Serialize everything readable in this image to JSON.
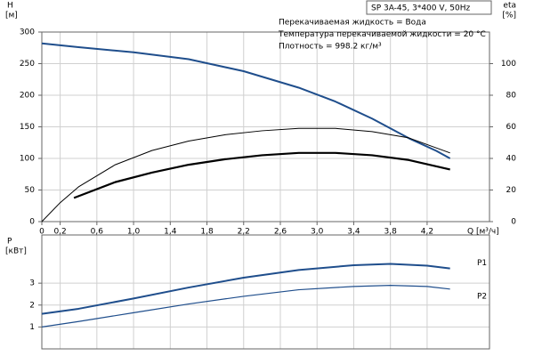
{
  "chart_data": [
    {
      "type": "line",
      "title": "SP 3A-45, 3*400 V, 50Hz",
      "annotations": [
        "Перекачиваемая жидкость = Вода",
        "Температура перекачиваемой жидкости = 20 °C",
        "Плотность = 998.2 кг/м³"
      ],
      "ylabel": "H",
      "yunit": "[м]",
      "y2label": "eta",
      "y2unit": "[%]",
      "xlabel": "Q [м³/ч]",
      "xlim": [
        0,
        4.88
      ],
      "ylim": [
        0,
        300
      ],
      "y2lim": [
        0,
        120
      ],
      "xticks": [
        0,
        {
          "value": 0.2,
          "label": "0,2"
        },
        {
          "value": 0.6,
          "label": "0,6"
        },
        {
          "value": 1.0,
          "label": "1,0"
        },
        {
          "value": 1.4,
          "label": "1,4"
        },
        {
          "value": 1.8,
          "label": "1,8"
        },
        {
          "value": 2.2,
          "label": "2,2"
        },
        {
          "value": 2.6,
          "label": "2,6"
        },
        {
          "value": 3.0,
          "label": "3,0"
        },
        {
          "value": 3.4,
          "label": "3,4"
        },
        {
          "value": 3.8,
          "label": "3,8"
        },
        {
          "value": 4.2,
          "label": "4,2"
        }
      ],
      "yticks": [
        0,
        50,
        100,
        150,
        200,
        250,
        300
      ],
      "y2ticks": [
        0,
        20,
        40,
        60,
        80,
        100
      ],
      "grid": true,
      "series": [
        {
          "color": "#1f4e8c",
          "width": 2,
          "x": [
            0,
            0.4,
            1.0,
            1.6,
            2.2,
            2.8,
            3.2,
            3.6,
            4.0,
            4.3,
            4.45
          ],
          "values": [
            282,
            276,
            268,
            257,
            238,
            212,
            190,
            163,
            132,
            112,
            100
          ]
        },
        {
          "color": "#000000",
          "width": 1,
          "axis": "y2",
          "x": [
            0,
            0.2,
            0.4,
            0.8,
            1.2,
            1.6,
            2.0,
            2.4,
            2.8,
            3.2,
            3.6,
            4.0,
            4.45
          ],
          "values": [
            0,
            12,
            22,
            36,
            45,
            51,
            55,
            57.5,
            59,
            59,
            57,
            53,
            43.5
          ]
        },
        {
          "color": "#000000",
          "width": 2.2,
          "axis": "y2",
          "x": [
            0.35,
            0.8,
            1.2,
            1.6,
            2.0,
            2.4,
            2.8,
            3.2,
            3.6,
            4.0,
            4.45
          ],
          "values": [
            15,
            25,
            31,
            36,
            39.5,
            42,
            43.5,
            43.5,
            42,
            39,
            33
          ]
        }
      ]
    },
    {
      "type": "line",
      "ylabel": "P",
      "yunit": "[кВт]",
      "xlim": [
        0,
        4.88
      ],
      "ylim": [
        0,
        5.2
      ],
      "yticks": [
        1,
        2,
        3
      ],
      "grid": true,
      "series": [
        {
          "name": "P1",
          "color": "#1f4e8c",
          "width": 2,
          "x": [
            0,
            0.4,
            1.0,
            1.6,
            2.2,
            2.8,
            3.4,
            3.8,
            4.2,
            4.45
          ],
          "values": [
            1.6,
            1.83,
            2.3,
            2.8,
            3.25,
            3.6,
            3.82,
            3.88,
            3.8,
            3.67
          ]
        },
        {
          "name": "P2",
          "color": "#1f4e8c",
          "width": 1.2,
          "x": [
            0,
            0.4,
            1.0,
            1.6,
            2.2,
            2.8,
            3.4,
            3.8,
            4.2,
            4.45
          ],
          "values": [
            1.0,
            1.25,
            1.65,
            2.05,
            2.4,
            2.7,
            2.85,
            2.9,
            2.85,
            2.73
          ]
        }
      ]
    }
  ]
}
